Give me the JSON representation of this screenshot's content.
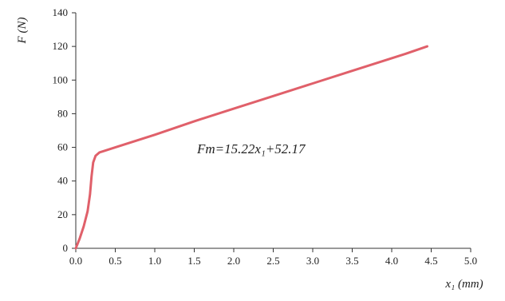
{
  "chart_data": {
    "type": "line",
    "title": "",
    "ylabel": "F (N)",
    "xlabel": "x₁ (mm)",
    "xlim": [
      0,
      5.0
    ],
    "ylim": [
      0,
      140
    ],
    "xticks": [
      0,
      0.5,
      1.0,
      1.5,
      2.0,
      2.5,
      3.0,
      3.5,
      4.0,
      4.5,
      5.0
    ],
    "xtick_labels": [
      "0.0",
      "0.5",
      "1.0",
      "1.5",
      "2.0",
      "2.5",
      "3.0",
      "3.5",
      "4.0",
      "4.5",
      "5.0"
    ],
    "yticks": [
      0,
      20,
      40,
      60,
      80,
      100,
      120,
      140
    ],
    "ytick_labels": [
      "0",
      "20",
      "40",
      "60",
      "80",
      "100",
      "120",
      "140"
    ],
    "grid": false,
    "legend": "none",
    "annotation": "Fm=15.22x₁+52.17",
    "series": [
      {
        "color": "#e0606a",
        "x": [
          0,
          0.05,
          0.1,
          0.15,
          0.18,
          0.2,
          0.22,
          0.25,
          0.3,
          0.5,
          1.0,
          1.5,
          2.0,
          2.5,
          3.0,
          3.5,
          4.0,
          4.2,
          4.45
        ],
        "y": [
          0,
          6,
          13,
          22,
          32,
          43,
          51,
          55,
          57,
          60,
          67.5,
          75.5,
          83,
          90.5,
          98,
          105.5,
          113,
          116,
          120
        ]
      }
    ]
  }
}
